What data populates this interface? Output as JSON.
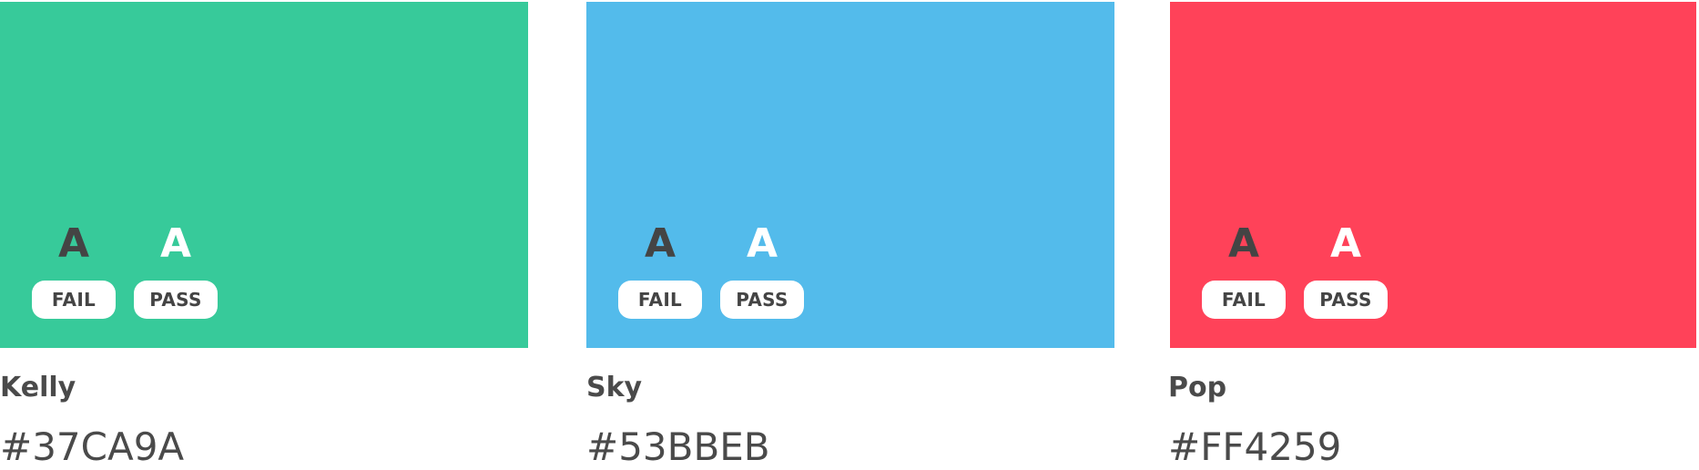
{
  "swatches": [
    {
      "name": "Kelly",
      "hex": "#37CA9A",
      "color": "#37CA9A",
      "sample_dark": "A",
      "sample_light": "A",
      "fail_label": "FAIL",
      "pass_label": "PASS"
    },
    {
      "name": "Sky",
      "hex": "#53BBEB",
      "color": "#53BBEB",
      "sample_dark": "A",
      "sample_light": "A",
      "fail_label": "FAIL",
      "pass_label": "PASS"
    },
    {
      "name": "Pop",
      "hex": "#FF4259",
      "color": "#FF4259",
      "sample_dark": "A",
      "sample_light": "A",
      "fail_label": "FAIL",
      "pass_label": "PASS"
    }
  ]
}
